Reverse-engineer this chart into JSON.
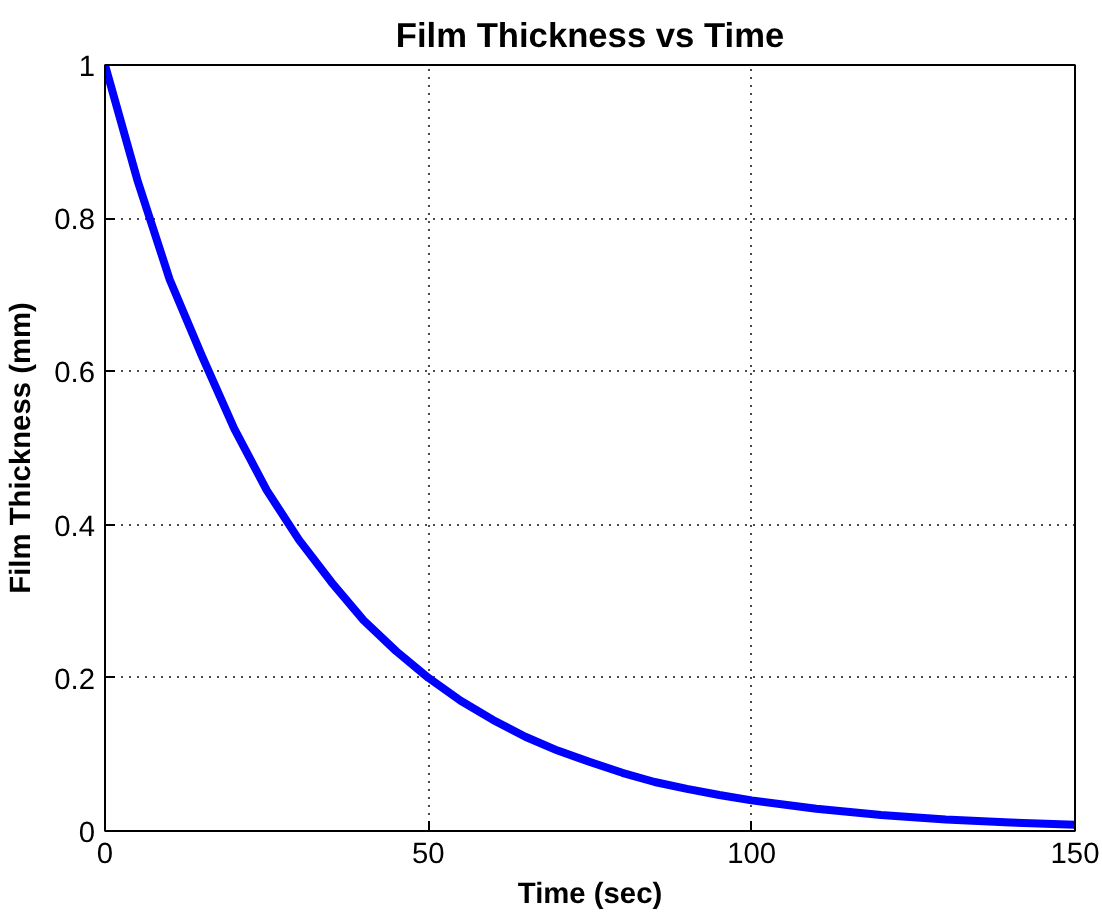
{
  "chart_data": {
    "type": "line",
    "title": "Film Thickness vs Time",
    "xlabel": "Time (sec)",
    "ylabel": "Film Thickness (mm)",
    "x": [
      0,
      5,
      10,
      15,
      20,
      25,
      30,
      35,
      40,
      45,
      50,
      55,
      60,
      65,
      70,
      75,
      80,
      85,
      90,
      95,
      100,
      110,
      120,
      130,
      140,
      150
    ],
    "series": [
      {
        "color": "#0000ff",
        "values": [
          1.0,
          0.85,
          0.72,
          0.62,
          0.525,
          0.445,
          0.38,
          0.325,
          0.275,
          0.235,
          0.2,
          0.17,
          0.145,
          0.123,
          0.105,
          0.09,
          0.076,
          0.064,
          0.055,
          0.047,
          0.04,
          0.029,
          0.021,
          0.015,
          0.011,
          0.008
        ]
      }
    ],
    "xlim": [
      0,
      150
    ],
    "ylim": [
      0,
      1
    ],
    "xticks": [
      0,
      50,
      100,
      150
    ],
    "yticks": [
      0,
      0.2,
      0.4,
      0.6,
      0.8,
      1
    ],
    "grid": true,
    "line_style": "solid"
  }
}
